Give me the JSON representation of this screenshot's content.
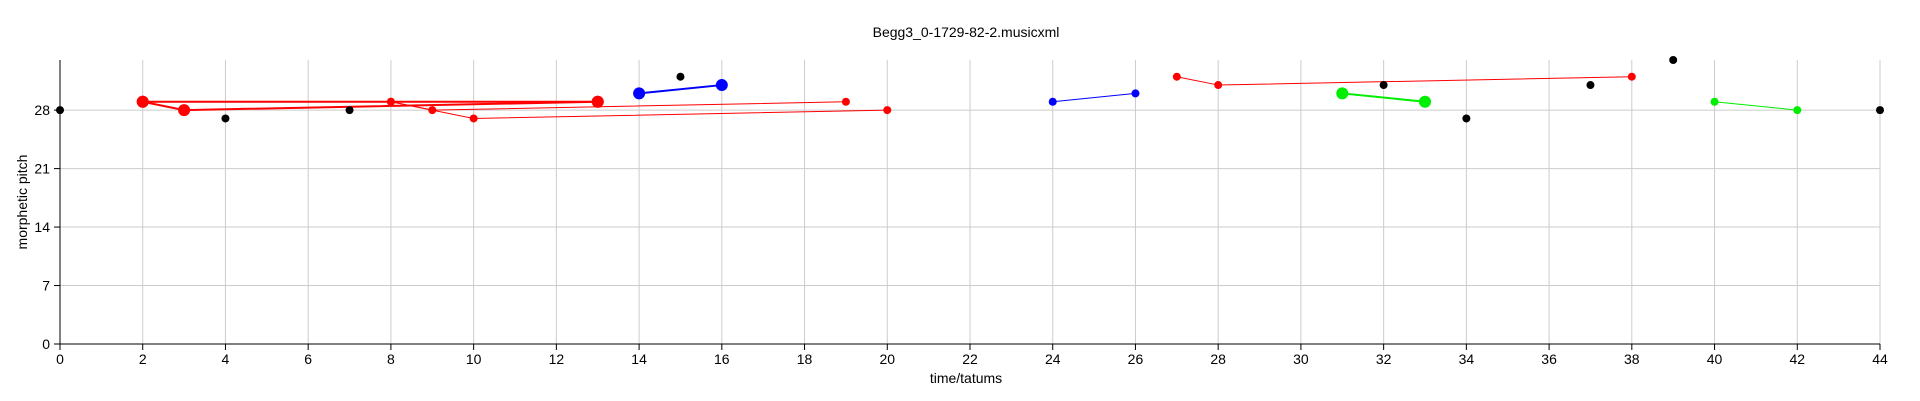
{
  "chart_data": {
    "type": "scatter",
    "title": "Begg3_0-1729-82-2.musicxml",
    "xlabel": "time/tatums",
    "ylabel": "morphetic pitch",
    "xlim": [
      0,
      44
    ],
    "ylim": [
      0,
      34
    ],
    "xticks": [
      0,
      2,
      4,
      6,
      8,
      10,
      12,
      14,
      16,
      18,
      20,
      22,
      24,
      26,
      28,
      30,
      32,
      34,
      36,
      38,
      40,
      42,
      44
    ],
    "yticks": [
      0,
      7,
      14,
      21,
      28
    ],
    "grid": true,
    "colors": {
      "red": "#ff0000",
      "blue": "#0000ff",
      "green": "#00ee00",
      "black": "#000000"
    },
    "points": [
      {
        "x": 0,
        "y": 28,
        "color": "black"
      },
      {
        "x": 4,
        "y": 27,
        "color": "black"
      },
      {
        "x": 7,
        "y": 28,
        "color": "black"
      },
      {
        "x": 15,
        "y": 32,
        "color": "black"
      },
      {
        "x": 32,
        "y": 31,
        "color": "black"
      },
      {
        "x": 34,
        "y": 27,
        "color": "black"
      },
      {
        "x": 37,
        "y": 31,
        "color": "black"
      },
      {
        "x": 39,
        "y": 34,
        "color": "black"
      },
      {
        "x": 44,
        "y": 28,
        "color": "black"
      }
    ],
    "segments": [
      {
        "color": "red",
        "weight": "heavy",
        "points": [
          [
            2,
            29
          ],
          [
            3,
            28
          ],
          [
            13,
            29
          ]
        ]
      },
      {
        "color": "red",
        "weight": "heavy",
        "points": [
          [
            2,
            29
          ],
          [
            13,
            29
          ]
        ]
      },
      {
        "color": "red",
        "weight": "light",
        "points": [
          [
            8,
            29
          ],
          [
            9,
            28
          ],
          [
            19,
            29
          ]
        ]
      },
      {
        "color": "red",
        "weight": "light",
        "points": [
          [
            8,
            29
          ],
          [
            10,
            27
          ],
          [
            20,
            28
          ]
        ]
      },
      {
        "color": "blue",
        "weight": "heavy",
        "points": [
          [
            14,
            30
          ],
          [
            16,
            31
          ]
        ]
      },
      {
        "color": "blue",
        "weight": "light",
        "points": [
          [
            24,
            29
          ],
          [
            26,
            30
          ]
        ]
      },
      {
        "color": "red",
        "weight": "light",
        "points": [
          [
            27,
            32
          ],
          [
            28,
            31
          ],
          [
            38,
            32
          ]
        ]
      },
      {
        "color": "green",
        "weight": "heavy",
        "points": [
          [
            31,
            30
          ],
          [
            33,
            29
          ]
        ]
      },
      {
        "color": "green",
        "weight": "light",
        "points": [
          [
            40,
            29
          ],
          [
            42,
            28
          ]
        ]
      }
    ]
  }
}
